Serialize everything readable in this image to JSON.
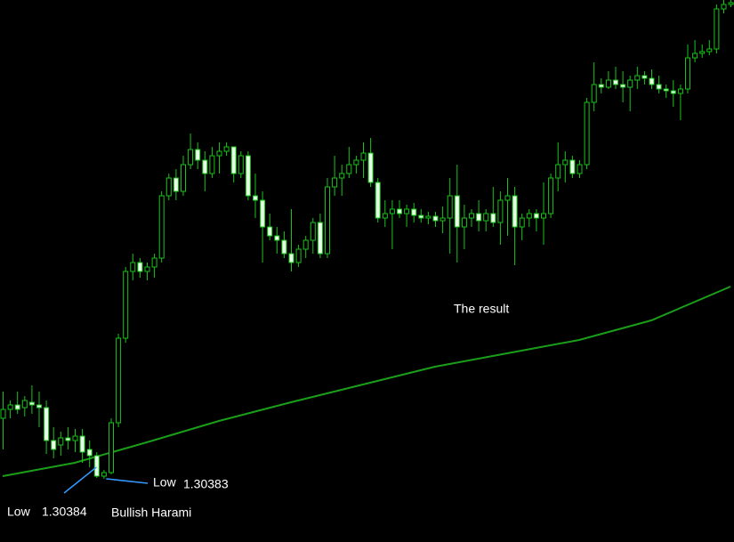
{
  "chart_data": {
    "type": "candlestick",
    "ylim": [
      1.30312,
      1.30921
    ],
    "color": "#19c419",
    "bear_fill": "#e6ffe6",
    "background": "#000000",
    "ohlc": [
      [
        1.30451,
        1.30481,
        1.30416,
        1.30461
      ],
      [
        1.30461,
        1.30471,
        1.30451,
        1.30466
      ],
      [
        1.30466,
        1.30481,
        1.30456,
        1.30461
      ],
      [
        1.30463,
        1.30476,
        1.30453,
        1.30471
      ],
      [
        1.30469,
        1.30488,
        1.30456,
        1.30466
      ],
      [
        1.30466,
        1.30481,
        1.30441,
        1.30463
      ],
      [
        1.30463,
        1.30471,
        1.30411,
        1.30426
      ],
      [
        1.30426,
        1.30441,
        1.30406,
        1.30416
      ],
      [
        1.30421,
        1.30436,
        1.30409,
        1.30429
      ],
      [
        1.30429,
        1.30441,
        1.30416,
        1.30426
      ],
      [
        1.30426,
        1.30439,
        1.30413,
        1.30431
      ],
      [
        1.30431,
        1.30439,
        1.30401,
        1.30413
      ],
      [
        1.30416,
        1.30426,
        1.30396,
        1.30409
      ],
      [
        1.30409,
        1.30413,
        1.30384,
        1.30386
      ],
      [
        1.30386,
        1.30393,
        1.30383,
        1.3039
      ],
      [
        1.3039,
        1.30451,
        1.30388,
        1.30446
      ],
      [
        1.30446,
        1.30546,
        1.30441,
        1.30541
      ],
      [
        1.30541,
        1.30621,
        1.30536,
        1.30616
      ],
      [
        1.30616,
        1.30636,
        1.30606,
        1.30626
      ],
      [
        1.30626,
        1.30631,
        1.30609,
        1.30616
      ],
      [
        1.30616,
        1.30626,
        1.30606,
        1.30621
      ],
      [
        1.30621,
        1.30636,
        1.30609,
        1.30631
      ],
      [
        1.30631,
        1.30706,
        1.30626,
        1.30701
      ],
      [
        1.30701,
        1.30726,
        1.30696,
        1.30721
      ],
      [
        1.30721,
        1.30731,
        1.30696,
        1.30706
      ],
      [
        1.30706,
        1.30746,
        1.30701,
        1.30736
      ],
      [
        1.30736,
        1.30771,
        1.30731,
        1.30753
      ],
      [
        1.30753,
        1.30761,
        1.30731,
        1.30741
      ],
      [
        1.30741,
        1.30751,
        1.30706,
        1.30726
      ],
      [
        1.30726,
        1.30756,
        1.30721,
        1.30746
      ],
      [
        1.30746,
        1.30761,
        1.30726,
        1.30751
      ],
      [
        1.30751,
        1.30761,
        1.30746,
        1.30756
      ],
      [
        1.30756,
        1.30756,
        1.30716,
        1.30726
      ],
      [
        1.30726,
        1.30751,
        1.30721,
        1.30746
      ],
      [
        1.30746,
        1.30751,
        1.30696,
        1.30701
      ],
      [
        1.30701,
        1.30726,
        1.30676,
        1.30696
      ],
      [
        1.30696,
        1.30706,
        1.30626,
        1.30666
      ],
      [
        1.30666,
        1.30681,
        1.30651,
        1.30656
      ],
      [
        1.30656,
        1.30666,
        1.30636,
        1.30651
      ],
      [
        1.30651,
        1.30661,
        1.30631,
        1.30636
      ],
      [
        1.30636,
        1.30686,
        1.30616,
        1.30626
      ],
      [
        1.30626,
        1.30646,
        1.30621,
        1.30641
      ],
      [
        1.30641,
        1.30656,
        1.30631,
        1.30651
      ],
      [
        1.30651,
        1.30676,
        1.30636,
        1.30671
      ],
      [
        1.30671,
        1.30681,
        1.30631,
        1.30636
      ],
      [
        1.30636,
        1.30721,
        1.30631,
        1.30711
      ],
      [
        1.30711,
        1.30746,
        1.30701,
        1.30721
      ],
      [
        1.30721,
        1.30736,
        1.30701,
        1.30726
      ],
      [
        1.30726,
        1.30756,
        1.30721,
        1.30736
      ],
      [
        1.30736,
        1.30746,
        1.30726,
        1.30741
      ],
      [
        1.30741,
        1.30761,
        1.30721,
        1.30749
      ],
      [
        1.30749,
        1.30766,
        1.30711,
        1.30716
      ],
      [
        1.30716,
        1.30721,
        1.30671,
        1.30676
      ],
      [
        1.30676,
        1.30696,
        1.30666,
        1.30681
      ],
      [
        1.30681,
        1.30696,
        1.30641,
        1.30686
      ],
      [
        1.30686,
        1.30696,
        1.30676,
        1.30681
      ],
      [
        1.30681,
        1.30691,
        1.30666,
        1.30686
      ],
      [
        1.30686,
        1.30693,
        1.30671,
        1.30679
      ],
      [
        1.30679,
        1.30686,
        1.30671,
        1.30676
      ],
      [
        1.30676,
        1.30683,
        1.30669,
        1.30678
      ],
      [
        1.30678,
        1.30683,
        1.30666,
        1.30673
      ],
      [
        1.30673,
        1.30689,
        1.30659,
        1.30676
      ],
      [
        1.30676,
        1.30721,
        1.30636,
        1.30701
      ],
      [
        1.30701,
        1.30736,
        1.30626,
        1.30666
      ],
      [
        1.30666,
        1.30691,
        1.30641,
        1.30676
      ],
      [
        1.30676,
        1.30686,
        1.30666,
        1.30681
      ],
      [
        1.30681,
        1.30696,
        1.30661,
        1.30673
      ],
      [
        1.30673,
        1.30686,
        1.30661,
        1.30681
      ],
      [
        1.30681,
        1.30711,
        1.30666,
        1.30671
      ],
      [
        1.30671,
        1.30706,
        1.30646,
        1.30696
      ],
      [
        1.30696,
        1.30721,
        1.30656,
        1.30701
      ],
      [
        1.30701,
        1.30711,
        1.30623,
        1.30666
      ],
      [
        1.30666,
        1.30681,
        1.30651,
        1.30676
      ],
      [
        1.30676,
        1.30686,
        1.30666,
        1.30681
      ],
      [
        1.30681,
        1.30686,
        1.30661,
        1.30676
      ],
      [
        1.30676,
        1.30716,
        1.30646,
        1.30681
      ],
      [
        1.30681,
        1.30726,
        1.30676,
        1.30721
      ],
      [
        1.30721,
        1.30761,
        1.30706,
        1.30736
      ],
      [
        1.30736,
        1.30751,
        1.30716,
        1.30741
      ],
      [
        1.30741,
        1.30746,
        1.30721,
        1.30726
      ],
      [
        1.30726,
        1.30741,
        1.30721,
        1.30736
      ],
      [
        1.30736,
        1.30811,
        1.30731,
        1.30806
      ],
      [
        1.30806,
        1.30851,
        1.30796,
        1.30826
      ],
      [
        1.30826,
        1.30833,
        1.30816,
        1.30823
      ],
      [
        1.30823,
        1.30841,
        1.30821,
        1.30831
      ],
      [
        1.30831,
        1.30846,
        1.30821,
        1.30826
      ],
      [
        1.30826,
        1.30841,
        1.30806,
        1.30823
      ],
      [
        1.30823,
        1.30836,
        1.30796,
        1.30831
      ],
      [
        1.30831,
        1.30846,
        1.30821,
        1.30836
      ],
      [
        1.30836,
        1.30841,
        1.30826,
        1.30833
      ],
      [
        1.30833,
        1.30843,
        1.30821,
        1.30826
      ],
      [
        1.30826,
        1.30836,
        1.30816,
        1.30821
      ],
      [
        1.30821,
        1.30826,
        1.30811,
        1.30819
      ],
      [
        1.30819,
        1.30831,
        1.30801,
        1.30816
      ],
      [
        1.30816,
        1.30826,
        1.30786,
        1.30821
      ],
      [
        1.30821,
        1.30871,
        1.30816,
        1.30856
      ],
      [
        1.30856,
        1.30876,
        1.30851,
        1.30861
      ],
      [
        1.30861,
        1.30871,
        1.30856,
        1.30863
      ],
      [
        1.30863,
        1.30876,
        1.30859,
        1.30866
      ],
      [
        1.30866,
        1.30916,
        1.30861,
        1.30911
      ],
      [
        1.30911,
        1.30921,
        1.30906,
        1.30916
      ],
      [
        1.30916,
        1.30921,
        1.30913,
        1.30918
      ]
    ],
    "ma": {
      "color": "#1a9e1a",
      "x": [
        0,
        10,
        20,
        30,
        40,
        50,
        60,
        70,
        80,
        90,
        101
      ],
      "values": [
        1.30386,
        1.30401,
        1.30424,
        1.30448,
        1.30469,
        1.30489,
        1.30509,
        1.30524,
        1.30539,
        1.30561,
        1.30599
      ]
    },
    "annotations": [
      {
        "text": "The result"
      },
      {
        "label": "Low",
        "value": 1.30383,
        "candle": 14
      },
      {
        "label": "Low",
        "value": 1.30384,
        "candle": 13,
        "text": "Bullish Harami"
      }
    ],
    "annotation_color": "#3399ff"
  }
}
